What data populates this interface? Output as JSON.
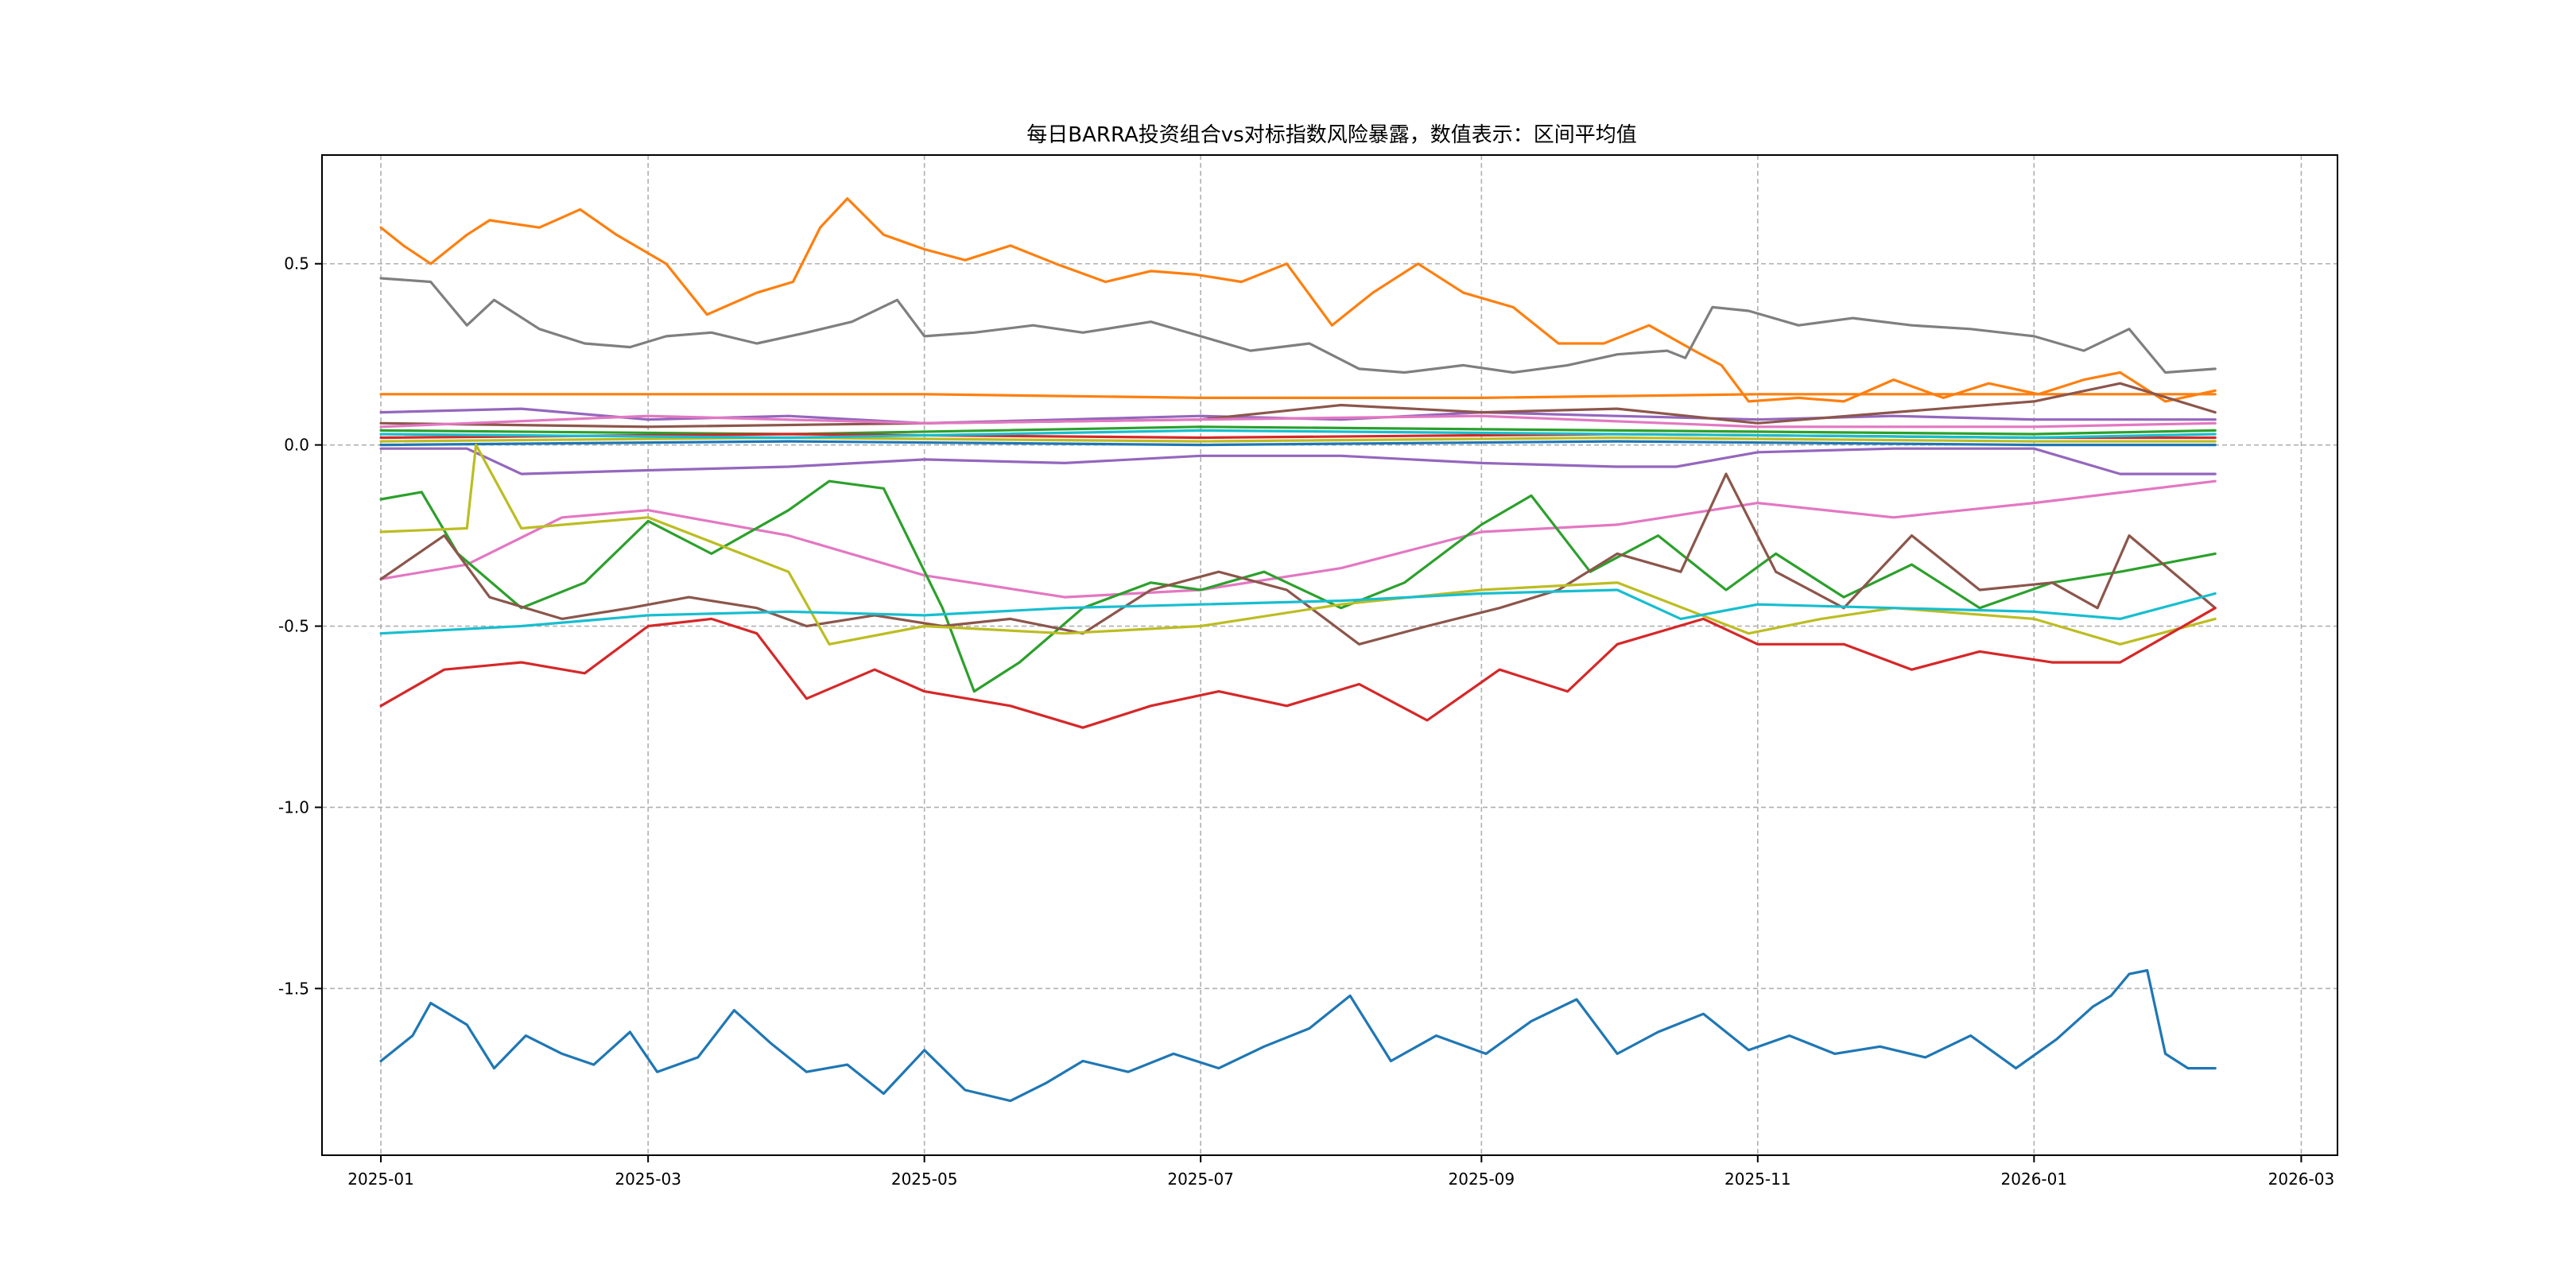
{
  "chart_data": {
    "type": "line",
    "title": "每日BARRA投资组合vs对标指数风险暴露，数值表示：区间平均值",
    "xlabel": "",
    "ylabel": "",
    "x_ticks": [
      "2025-01",
      "2025-03",
      "2025-05",
      "2025-07",
      "2025-09",
      "2025-11",
      "2026-01",
      "2026-03"
    ],
    "y_ticks": [
      "-1.5",
      "-1.0",
      "-0.5",
      "0.0",
      "0.5"
    ],
    "xlim": [
      "2024-12-19",
      "2026-03-09"
    ],
    "ylim": [
      -1.96,
      0.8
    ],
    "grid": true,
    "series": [
      {
        "color": "#1f77b4",
        "x": [
          "2025-01-01",
          "2025-01-08",
          "2025-01-12",
          "2025-01-20",
          "2025-01-26",
          "2025-02-02",
          "2025-02-10",
          "2025-02-17",
          "2025-02-25",
          "2025-03-03",
          "2025-03-12",
          "2025-03-20",
          "2025-03-28",
          "2025-04-05",
          "2025-04-14",
          "2025-04-22",
          "2025-05-01",
          "2025-05-10",
          "2025-05-20",
          "2025-05-28",
          "2025-06-05",
          "2025-06-15",
          "2025-06-25",
          "2025-07-05",
          "2025-07-15",
          "2025-07-25",
          "2025-08-03",
          "2025-08-12",
          "2025-08-22",
          "2025-09-02",
          "2025-09-12",
          "2025-09-22",
          "2025-10-01",
          "2025-10-10",
          "2025-10-20",
          "2025-10-30",
          "2025-11-08",
          "2025-11-18",
          "2025-11-28",
          "2025-12-08",
          "2025-12-18",
          "2025-12-28",
          "2026-01-06",
          "2026-01-14",
          "2026-01-18",
          "2026-01-22",
          "2026-01-26",
          "2026-01-30",
          "2026-02-04",
          "2026-02-10"
        ],
        "y": [
          -1.7,
          -1.63,
          -1.54,
          -1.6,
          -1.72,
          -1.63,
          -1.68,
          -1.71,
          -1.62,
          -1.73,
          -1.69,
          -1.56,
          -1.65,
          -1.73,
          -1.71,
          -1.79,
          -1.67,
          -1.78,
          -1.81,
          -1.76,
          -1.7,
          -1.73,
          -1.68,
          -1.72,
          -1.66,
          -1.61,
          -1.52,
          -1.7,
          -1.63,
          -1.68,
          -1.59,
          -1.53,
          -1.68,
          -1.62,
          -1.57,
          -1.67,
          -1.63,
          -1.68,
          -1.66,
          -1.69,
          -1.63,
          -1.72,
          -1.64,
          -1.55,
          -1.52,
          -1.46,
          -1.45,
          -1.68,
          -1.72,
          -1.72
        ]
      },
      {
        "color": "#ff7f0e",
        "x": [
          "2025-01-01",
          "2025-01-06",
          "2025-01-12",
          "2025-01-20",
          "2025-01-25",
          "2025-02-05",
          "2025-02-14",
          "2025-02-22",
          "2025-03-05",
          "2025-03-14",
          "2025-03-25",
          "2025-04-02",
          "2025-04-08",
          "2025-04-14",
          "2025-04-22",
          "2025-05-01",
          "2025-05-10",
          "2025-05-20",
          "2025-05-30",
          "2025-06-10",
          "2025-06-20",
          "2025-06-30",
          "2025-07-10",
          "2025-07-20",
          "2025-07-30",
          "2025-08-08",
          "2025-08-18",
          "2025-08-28",
          "2025-09-08",
          "2025-09-18",
          "2025-09-28",
          "2025-10-08",
          "2025-10-18",
          "2025-10-24",
          "2025-10-30",
          "2025-11-10",
          "2025-11-20",
          "2025-12-01",
          "2025-12-12",
          "2025-12-22",
          "2026-01-02",
          "2026-01-12",
          "2026-01-20",
          "2026-01-30",
          "2026-02-10"
        ],
        "y": [
          0.6,
          0.55,
          0.5,
          0.58,
          0.62,
          0.6,
          0.65,
          0.58,
          0.5,
          0.36,
          0.42,
          0.45,
          0.6,
          0.68,
          0.58,
          0.54,
          0.51,
          0.55,
          0.5,
          0.45,
          0.48,
          0.47,
          0.45,
          0.5,
          0.33,
          0.42,
          0.5,
          0.42,
          0.38,
          0.28,
          0.28,
          0.33,
          0.26,
          0.22,
          0.12,
          0.13,
          0.12,
          0.18,
          0.13,
          0.17,
          0.14,
          0.18,
          0.2,
          0.12,
          0.15
        ]
      },
      {
        "color": "#7f7f7f",
        "x": [
          "2025-01-01",
          "2025-01-12",
          "2025-01-20",
          "2025-01-26",
          "2025-02-05",
          "2025-02-15",
          "2025-02-25",
          "2025-03-05",
          "2025-03-15",
          "2025-03-25",
          "2025-04-05",
          "2025-04-15",
          "2025-04-25",
          "2025-05-01",
          "2025-05-12",
          "2025-05-25",
          "2025-06-05",
          "2025-06-20",
          "2025-07-01",
          "2025-07-12",
          "2025-07-25",
          "2025-08-05",
          "2025-08-15",
          "2025-08-28",
          "2025-09-08",
          "2025-09-20",
          "2025-10-01",
          "2025-10-12",
          "2025-10-16",
          "2025-10-22",
          "2025-10-30",
          "2025-11-10",
          "2025-11-22",
          "2025-12-05",
          "2025-12-18",
          "2026-01-01",
          "2026-01-12",
          "2026-01-22",
          "2026-01-30",
          "2026-02-10"
        ],
        "y": [
          0.46,
          0.45,
          0.33,
          0.4,
          0.32,
          0.28,
          0.27,
          0.3,
          0.31,
          0.28,
          0.31,
          0.34,
          0.4,
          0.3,
          0.31,
          0.33,
          0.31,
          0.34,
          0.3,
          0.26,
          0.28,
          0.21,
          0.2,
          0.22,
          0.2,
          0.22,
          0.25,
          0.26,
          0.24,
          0.38,
          0.37,
          0.33,
          0.35,
          0.33,
          0.32,
          0.3,
          0.26,
          0.32,
          0.2,
          0.21
        ]
      },
      {
        "color": "#9467bd",
        "x": [
          "2025-01-01",
          "2025-02-01",
          "2025-03-01",
          "2025-04-01",
          "2025-05-01",
          "2025-06-01",
          "2025-07-01",
          "2025-08-01",
          "2025-09-01",
          "2025-10-01",
          "2025-11-01",
          "2025-12-01",
          "2026-01-01",
          "2026-02-10"
        ],
        "y": [
          0.09,
          0.1,
          0.07,
          0.08,
          0.06,
          0.07,
          0.08,
          0.07,
          0.09,
          0.08,
          0.07,
          0.08,
          0.07,
          0.07
        ]
      },
      {
        "color": "#ff7f0e",
        "x": [
          "2025-01-01",
          "2025-03-01",
          "2025-05-01",
          "2025-07-01",
          "2025-09-01",
          "2025-11-01",
          "2026-01-01",
          "2026-02-10"
        ],
        "y": [
          0.14,
          0.14,
          0.14,
          0.13,
          0.13,
          0.14,
          0.14,
          0.14
        ]
      },
      {
        "color": "#8c564b",
        "x": [
          "2025-01-01",
          "2025-03-01",
          "2025-05-01",
          "2025-07-01",
          "2025-08-01",
          "2025-09-01",
          "2025-10-01",
          "2025-11-01",
          "2025-12-01",
          "2026-01-01",
          "2026-01-20",
          "2026-02-10"
        ],
        "y": [
          0.06,
          0.05,
          0.06,
          0.07,
          0.11,
          0.09,
          0.1,
          0.06,
          0.09,
          0.12,
          0.17,
          0.09
        ]
      },
      {
        "color": "#e377c2",
        "x": [
          "2025-01-01",
          "2025-03-01",
          "2025-05-01",
          "2025-07-01",
          "2025-09-01",
          "2025-11-01",
          "2026-01-01",
          "2026-02-10"
        ],
        "y": [
          0.05,
          0.08,
          0.06,
          0.07,
          0.08,
          0.05,
          0.05,
          0.06
        ]
      },
      {
        "color": "#2ca02c",
        "x": [
          "2025-01-01",
          "2025-04-01",
          "2025-07-01",
          "2025-10-01",
          "2026-01-01",
          "2026-02-10"
        ],
        "y": [
          0.04,
          0.03,
          0.05,
          0.04,
          0.03,
          0.04
        ]
      },
      {
        "color": "#d62728",
        "x": [
          "2025-01-01",
          "2025-04-01",
          "2025-07-01",
          "2025-10-01",
          "2026-01-01",
          "2026-02-10"
        ],
        "y": [
          0.02,
          0.03,
          0.02,
          0.03,
          0.02,
          0.02
        ]
      },
      {
        "color": "#bcbd22",
        "x": [
          "2025-01-01",
          "2025-04-01",
          "2025-07-01",
          "2025-10-01",
          "2026-01-01",
          "2026-02-10"
        ],
        "y": [
          0.01,
          0.02,
          0.01,
          0.02,
          0.01,
          0.01
        ]
      },
      {
        "color": "#17becf",
        "x": [
          "2025-01-01",
          "2025-04-01",
          "2025-07-01",
          "2025-10-01",
          "2026-01-01",
          "2026-02-10"
        ],
        "y": [
          0.03,
          0.02,
          0.04,
          0.03,
          0.02,
          0.03
        ]
      },
      {
        "color": "#1f77b4",
        "x": [
          "2025-01-01",
          "2025-04-01",
          "2025-07-01",
          "2025-10-01",
          "2026-01-01",
          "2026-02-10"
        ],
        "y": [
          0.0,
          0.01,
          0.0,
          0.01,
          0.0,
          0.0
        ]
      },
      {
        "color": "#9467bd",
        "x": [
          "2025-01-01",
          "2025-01-20",
          "2025-02-01",
          "2025-03-01",
          "2025-04-01",
          "2025-05-01",
          "2025-06-01",
          "2025-07-01",
          "2025-08-01",
          "2025-09-01",
          "2025-10-01",
          "2025-10-14",
          "2025-11-01",
          "2025-12-01",
          "2026-01-01",
          "2026-01-20",
          "2026-02-10"
        ],
        "y": [
          -0.01,
          -0.01,
          -0.08,
          -0.07,
          -0.06,
          -0.04,
          -0.05,
          -0.03,
          -0.03,
          -0.05,
          -0.06,
          -0.06,
          -0.02,
          -0.01,
          -0.01,
          -0.08,
          -0.08
        ]
      },
      {
        "color": "#e377c2",
        "x": [
          "2025-01-01",
          "2025-01-20",
          "2025-02-10",
          "2025-03-01",
          "2025-04-01",
          "2025-05-01",
          "2025-06-01",
          "2025-07-01",
          "2025-08-01",
          "2025-09-01",
          "2025-10-01",
          "2025-11-01",
          "2025-12-01",
          "2026-01-01",
          "2026-02-10"
        ],
        "y": [
          -0.37,
          -0.33,
          -0.2,
          -0.18,
          -0.25,
          -0.36,
          -0.42,
          -0.4,
          -0.34,
          -0.24,
          -0.22,
          -0.16,
          -0.2,
          -0.16,
          -0.1
        ]
      },
      {
        "color": "#2ca02c",
        "x": [
          "2025-01-01",
          "2025-01-10",
          "2025-01-18",
          "2025-02-01",
          "2025-02-15",
          "2025-03-01",
          "2025-03-15",
          "2025-04-01",
          "2025-04-10",
          "2025-04-22",
          "2025-05-05",
          "2025-05-12",
          "2025-05-22",
          "2025-06-05",
          "2025-06-20",
          "2025-07-01",
          "2025-07-15",
          "2025-08-01",
          "2025-08-15",
          "2025-09-01",
          "2025-09-12",
          "2025-09-25",
          "2025-10-10",
          "2025-10-25",
          "2025-11-05",
          "2025-11-20",
          "2025-12-05",
          "2025-12-20",
          "2026-01-05",
          "2026-01-20",
          "2026-02-10"
        ],
        "y": [
          -0.15,
          -0.13,
          -0.3,
          -0.45,
          -0.38,
          -0.21,
          -0.3,
          -0.18,
          -0.1,
          -0.12,
          -0.45,
          -0.68,
          -0.6,
          -0.45,
          -0.38,
          -0.4,
          -0.35,
          -0.45,
          -0.38,
          -0.22,
          -0.14,
          -0.35,
          -0.25,
          -0.4,
          -0.3,
          -0.42,
          -0.33,
          -0.45,
          -0.38,
          -0.35,
          -0.3
        ]
      },
      {
        "color": "#8c564b",
        "x": [
          "2025-01-01",
          "2025-01-15",
          "2025-01-25",
          "2025-02-10",
          "2025-02-25",
          "2025-03-10",
          "2025-03-25",
          "2025-04-05",
          "2025-04-20",
          "2025-05-05",
          "2025-05-20",
          "2025-06-05",
          "2025-06-20",
          "2025-07-05",
          "2025-07-20",
          "2025-08-05",
          "2025-08-20",
          "2025-09-05",
          "2025-09-18",
          "2025-10-01",
          "2025-10-15",
          "2025-10-25",
          "2025-11-05",
          "2025-11-20",
          "2025-12-05",
          "2025-12-20",
          "2026-01-05",
          "2026-01-15",
          "2026-01-22",
          "2026-02-10"
        ],
        "y": [
          -0.37,
          -0.25,
          -0.42,
          -0.48,
          -0.45,
          -0.42,
          -0.45,
          -0.5,
          -0.47,
          -0.5,
          -0.48,
          -0.52,
          -0.4,
          -0.35,
          -0.4,
          -0.55,
          -0.5,
          -0.45,
          -0.4,
          -0.3,
          -0.35,
          -0.08,
          -0.35,
          -0.45,
          -0.25,
          -0.4,
          -0.38,
          -0.45,
          -0.25,
          -0.45
        ]
      },
      {
        "color": "#bcbd22",
        "x": [
          "2025-01-01",
          "2025-01-20",
          "2025-01-22",
          "2025-02-01",
          "2025-03-01",
          "2025-04-01",
          "2025-04-10",
          "2025-05-01",
          "2025-06-01",
          "2025-07-01",
          "2025-08-01",
          "2025-09-01",
          "2025-10-01",
          "2025-10-30",
          "2025-11-15",
          "2025-12-01",
          "2026-01-01",
          "2026-01-20",
          "2026-02-10"
        ],
        "y": [
          -0.24,
          -0.23,
          0.0,
          -0.23,
          -0.2,
          -0.35,
          -0.55,
          -0.5,
          -0.52,
          -0.5,
          -0.44,
          -0.4,
          -0.38,
          -0.52,
          -0.48,
          -0.45,
          -0.48,
          -0.55,
          -0.48
        ]
      },
      {
        "color": "#17becf",
        "x": [
          "2025-01-01",
          "2025-02-01",
          "2025-03-01",
          "2025-04-01",
          "2025-05-01",
          "2025-06-01",
          "2025-07-01",
          "2025-08-01",
          "2025-09-01",
          "2025-10-01",
          "2025-10-15",
          "2025-11-01",
          "2025-12-01",
          "2026-01-01",
          "2026-01-20",
          "2026-02-10"
        ],
        "y": [
          -0.52,
          -0.5,
          -0.47,
          -0.46,
          -0.47,
          -0.45,
          -0.44,
          -0.43,
          -0.41,
          -0.4,
          -0.48,
          -0.44,
          -0.45,
          -0.46,
          -0.48,
          -0.41
        ]
      },
      {
        "color": "#d62728",
        "x": [
          "2025-01-01",
          "2025-01-15",
          "2025-02-01",
          "2025-02-15",
          "2025-03-01",
          "2025-03-15",
          "2025-03-25",
          "2025-04-05",
          "2025-04-20",
          "2025-05-01",
          "2025-05-20",
          "2025-06-05",
          "2025-06-20",
          "2025-07-05",
          "2025-07-20",
          "2025-08-05",
          "2025-08-20",
          "2025-09-05",
          "2025-09-20",
          "2025-10-01",
          "2025-10-20",
          "2025-11-01",
          "2025-11-20",
          "2025-12-05",
          "2025-12-20",
          "2026-01-05",
          "2026-01-20",
          "2026-02-10"
        ],
        "y": [
          -0.72,
          -0.62,
          -0.6,
          -0.63,
          -0.5,
          -0.48,
          -0.52,
          -0.7,
          -0.62,
          -0.68,
          -0.72,
          -0.78,
          -0.72,
          -0.68,
          -0.72,
          -0.66,
          -0.76,
          -0.62,
          -0.68,
          -0.55,
          -0.48,
          -0.55,
          -0.55,
          -0.62,
          -0.57,
          -0.6,
          -0.6,
          -0.45
        ]
      }
    ]
  }
}
